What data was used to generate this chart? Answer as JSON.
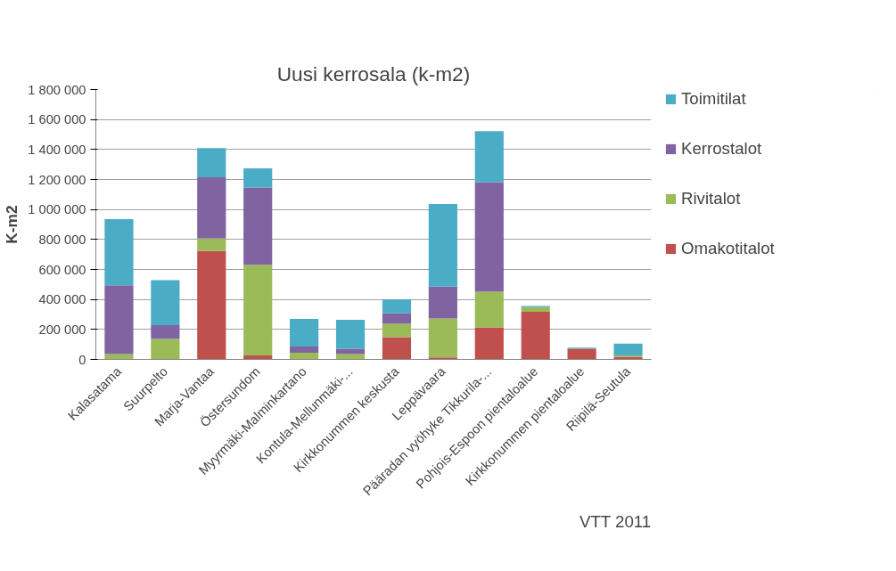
{
  "chart_data": {
    "type": "bar",
    "stacked": true,
    "title": "Uusi kerrosala (k-m2)",
    "ylabel": "K-m2",
    "categories": [
      "Kalasatama",
      "Suurpelto",
      "Marja-Vantaa",
      "Östersundom",
      "Myyrmäki-Malminkartano",
      "Kontula-Mellunmäki-...",
      "Kirkkonummen keskusta",
      "Leppävaara",
      "Pääradan vyöhyke Tikkurila-...",
      "Pohjois-Espoon pientaloalue",
      "Kirkkonummen pientaloalue",
      "Riipilä-Seutula"
    ],
    "series": [
      {
        "name": "Omakotitalot",
        "color": "#c0504d",
        "values": [
          0,
          0,
          724000,
          26000,
          0,
          0,
          148000,
          13000,
          214000,
          318000,
          71000,
          18000
        ]
      },
      {
        "name": "Rivitalot",
        "color": "#9bbb59",
        "values": [
          35000,
          137000,
          83000,
          605000,
          44000,
          35000,
          90000,
          261000,
          238000,
          31000,
          0,
          8000
        ]
      },
      {
        "name": "Kerrostalot",
        "color": "#8064a2",
        "values": [
          459000,
          92000,
          408000,
          516000,
          42000,
          36000,
          69000,
          211000,
          730000,
          0,
          0,
          0
        ]
      },
      {
        "name": "Toimitilat",
        "color": "#4bacc6",
        "values": [
          441000,
          300000,
          195000,
          128000,
          185000,
          194000,
          94000,
          552000,
          340000,
          8000,
          8000,
          80000
        ]
      }
    ],
    "ylim": [
      0,
      1800000
    ],
    "yticks": [
      {
        "value": 0,
        "label": "0"
      },
      {
        "value": 200000,
        "label": "200 000"
      },
      {
        "value": 400000,
        "label": "400 000"
      },
      {
        "value": 600000,
        "label": "600 000"
      },
      {
        "value": 800000,
        "label": "800 000"
      },
      {
        "value": 1000000,
        "label": "1 000 000"
      },
      {
        "value": 1200000,
        "label": "1 200 000"
      },
      {
        "value": 1400000,
        "label": "1 400 000"
      },
      {
        "value": 1600000,
        "label": "1 600 000"
      },
      {
        "value": 1800000,
        "label": "1 800 000"
      }
    ],
    "grid": "y",
    "legend": "right",
    "annotations": [
      "VTT 2011"
    ]
  }
}
